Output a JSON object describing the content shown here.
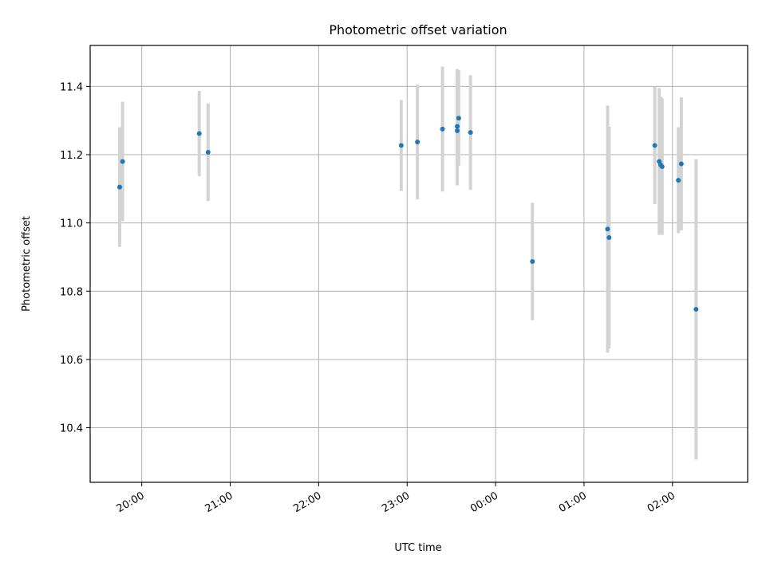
{
  "chart_data": {
    "type": "scatter",
    "title": "Photometric offset variation",
    "xlabel": "UTC time",
    "ylabel": "Photometric offset",
    "x_ticks": [
      "20:00",
      "21:00",
      "22:00",
      "23:00",
      "00:00",
      "01:00",
      "02:00"
    ],
    "y_ticks": [
      "10.4",
      "10.6",
      "10.8",
      "11.0",
      "11.2",
      "11.4"
    ],
    "xlim": [
      "19:25",
      "02:51"
    ],
    "ylim": [
      10.24,
      11.52
    ],
    "grid": true,
    "colors": {
      "point": "#1f77b4",
      "errorbar": "#d3d3d3",
      "grid": "#b0b0b0"
    },
    "points": [
      {
        "x": "19:45",
        "y": 11.105,
        "err": 0.175
      },
      {
        "x": "19:47",
        "y": 11.18,
        "err": 0.175
      },
      {
        "x": "20:39",
        "y": 11.262,
        "err": 0.125
      },
      {
        "x": "20:45",
        "y": 11.207,
        "err": 0.143
      },
      {
        "x": "22:56",
        "y": 11.227,
        "err": 0.133
      },
      {
        "x": "23:07",
        "y": 11.237,
        "err": 0.168
      },
      {
        "x": "23:24",
        "y": 11.275,
        "err": 0.183
      },
      {
        "x": "23:34",
        "y": 11.283,
        "err": 0.168
      },
      {
        "x": "23:34",
        "y": 11.27,
        "err": 0.16
      },
      {
        "x": "23:35",
        "y": 11.307,
        "err": 0.14
      },
      {
        "x": "23:43",
        "y": 11.265,
        "err": 0.168
      },
      {
        "x": "00:25",
        "y": 10.887,
        "err": 0.172
      },
      {
        "x": "01:16",
        "y": 10.982,
        "err": 0.362
      },
      {
        "x": "01:17",
        "y": 10.957,
        "err": 0.325
      },
      {
        "x": "01:48",
        "y": 11.227,
        "err": 0.172
      },
      {
        "x": "01:51",
        "y": 11.18,
        "err": 0.215
      },
      {
        "x": "01:52",
        "y": 11.17,
        "err": 0.2
      },
      {
        "x": "01:53",
        "y": 11.165,
        "err": 0.2
      },
      {
        "x": "02:04",
        "y": 11.125,
        "err": 0.155
      },
      {
        "x": "02:06",
        "y": 11.173,
        "err": 0.195
      },
      {
        "x": "02:16",
        "y": 10.747,
        "err": 0.44
      }
    ]
  }
}
